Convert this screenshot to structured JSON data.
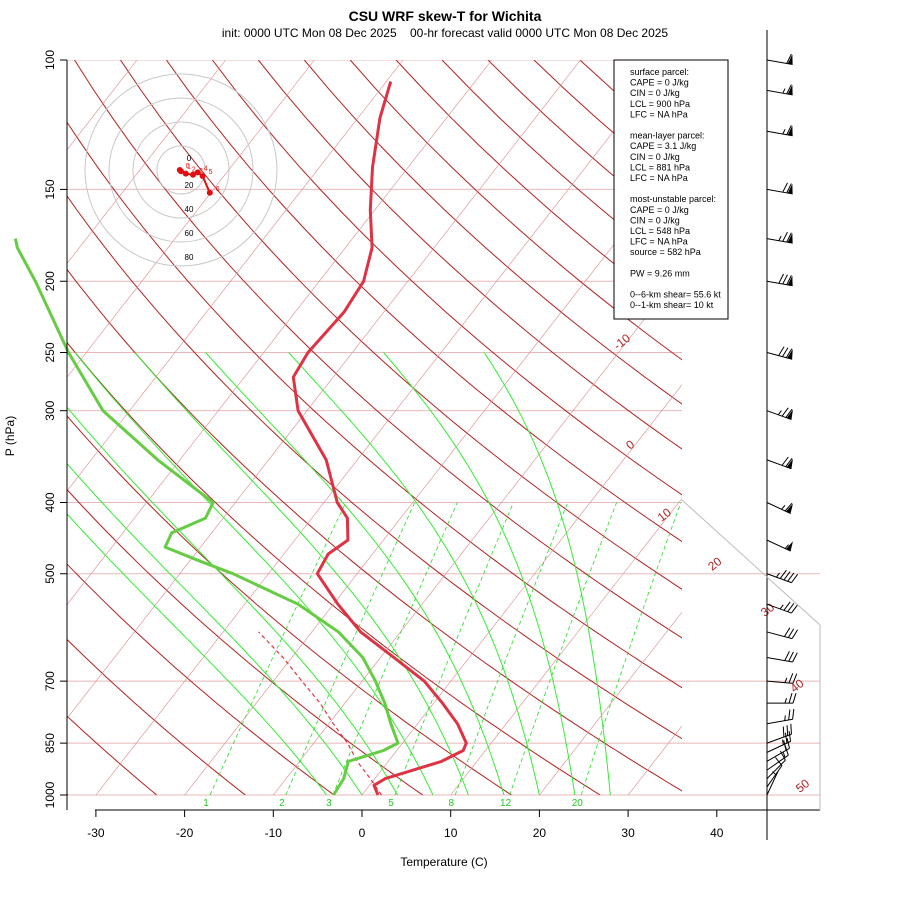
{
  "chart_data": {
    "type": "skew-t",
    "title": "CSU WRF skew-T for Wichita",
    "subtitle": "init: 0000 UTC Mon 08 Dec 2025    00-hr forecast valid 0000 UTC Mon 08 Dec 2025",
    "xlabel": "Temperature (C)",
    "ylabel": "P (hPa)",
    "x_ticks": [
      -30,
      -20,
      -10,
      0,
      10,
      20,
      30,
      40
    ],
    "y_ticks": [
      100,
      150,
      200,
      250,
      300,
      400,
      500,
      700,
      850,
      1000
    ],
    "xlim": [
      -33,
      45
    ],
    "ylim": [
      1000,
      100
    ],
    "y_scale": "log",
    "isotherm_labels": [
      "-10",
      "0",
      "10",
      "20",
      "30",
      "40",
      "50"
    ],
    "mixing_ratio_labels": [
      "1",
      "2",
      "3",
      "5",
      "8",
      "12",
      "20"
    ],
    "temperature_profile": {
      "color": "#dd3344",
      "points": [
        [
          1000,
          1.8
        ],
        [
          970,
          0.5
        ],
        [
          950,
          1.2
        ],
        [
          900,
          6.0
        ],
        [
          870,
          7.5
        ],
        [
          850,
          7.2
        ],
        [
          800,
          4.5
        ],
        [
          750,
          1.0
        ],
        [
          700,
          -3.0
        ],
        [
          650,
          -8.5
        ],
        [
          600,
          -14.5
        ],
        [
          550,
          -19.5
        ],
        [
          500,
          -24.5
        ],
        [
          470,
          -25.0
        ],
        [
          450,
          -24.0
        ],
        [
          420,
          -26.0
        ],
        [
          400,
          -28.5
        ],
        [
          350,
          -33.5
        ],
        [
          300,
          -41.0
        ],
        [
          270,
          -44.5
        ],
        [
          250,
          -45.0
        ],
        [
          220,
          -44.5
        ],
        [
          200,
          -45.0
        ],
        [
          180,
          -47.0
        ],
        [
          160,
          -50.5
        ],
        [
          140,
          -54.0
        ],
        [
          120,
          -57.5
        ],
        [
          107,
          -59.5
        ]
      ]
    },
    "dewpoint_profile": {
      "color": "#66cc44",
      "points": [
        [
          1000,
          -3.2
        ],
        [
          950,
          -3.5
        ],
        [
          900,
          -4.5
        ],
        [
          870,
          -1.5
        ],
        [
          850,
          -0.5
        ],
        [
          800,
          -3.0
        ],
        [
          750,
          -5.5
        ],
        [
          700,
          -8.5
        ],
        [
          650,
          -12.0
        ],
        [
          600,
          -17.0
        ],
        [
          550,
          -24.0
        ],
        [
          500,
          -34.0
        ],
        [
          480,
          -39.0
        ],
        [
          460,
          -44.0
        ],
        [
          440,
          -44.5
        ],
        [
          420,
          -42.0
        ],
        [
          400,
          -42.5
        ],
        [
          350,
          -52.5
        ],
        [
          300,
          -63.0
        ],
        [
          250,
          -72.0
        ],
        [
          200,
          -82.0
        ],
        [
          180,
          -87.0
        ],
        [
          175,
          -88.0
        ]
      ]
    },
    "parcel_profile": {
      "color": "#dd3344",
      "dashed": true,
      "points": [
        [
          1000,
          2.2
        ],
        [
          950,
          -0.5
        ],
        [
          900,
          -3.5
        ],
        [
          850,
          -6.2
        ],
        [
          800,
          -9.5
        ],
        [
          750,
          -12.8
        ],
        [
          700,
          -16.8
        ],
        [
          650,
          -21.0
        ],
        [
          600,
          -26.0
        ]
      ]
    },
    "wind_barbs": [
      {
        "p": 1000,
        "dir": 205,
        "kt": 5
      },
      {
        "p": 975,
        "dir": 215,
        "kt": 10
      },
      {
        "p": 950,
        "dir": 225,
        "kt": 10
      },
      {
        "p": 925,
        "dir": 235,
        "kt": 15
      },
      {
        "p": 900,
        "dir": 240,
        "kt": 20
      },
      {
        "p": 875,
        "dir": 245,
        "kt": 25
      },
      {
        "p": 850,
        "dir": 250,
        "kt": 30
      },
      {
        "p": 800,
        "dir": 260,
        "kt": 25
      },
      {
        "p": 750,
        "dir": 270,
        "kt": 25
      },
      {
        "p": 700,
        "dir": 275,
        "kt": 25
      },
      {
        "p": 650,
        "dir": 280,
        "kt": 30
      },
      {
        "p": 600,
        "dir": 285,
        "kt": 30
      },
      {
        "p": 550,
        "dir": 290,
        "kt": 35
      },
      {
        "p": 500,
        "dir": 290,
        "kt": 45
      },
      {
        "p": 450,
        "dir": 295,
        "kt": 55
      },
      {
        "p": 400,
        "dir": 295,
        "kt": 65
      },
      {
        "p": 350,
        "dir": 290,
        "kt": 70
      },
      {
        "p": 300,
        "dir": 290,
        "kt": 75
      },
      {
        "p": 250,
        "dir": 285,
        "kt": 80
      },
      {
        "p": 200,
        "dir": 280,
        "kt": 80
      },
      {
        "p": 175,
        "dir": 280,
        "kt": 75
      },
      {
        "p": 150,
        "dir": 280,
        "kt": 70
      },
      {
        "p": 125,
        "dir": 280,
        "kt": 65
      },
      {
        "p": 110,
        "dir": 280,
        "kt": 65
      },
      {
        "p": 100,
        "dir": 280,
        "kt": 60
      }
    ],
    "hodograph": {
      "ring_labels": [
        "0",
        "20",
        "40",
        "60",
        "80"
      ],
      "point_labels": [
        "0",
        "1",
        "2",
        "3",
        "4",
        "5",
        "6"
      ],
      "points": [
        [
          -1,
          0
        ],
        [
          0,
          -1
        ],
        [
          4,
          -3
        ],
        [
          10,
          -4
        ],
        [
          14,
          -2
        ],
        [
          18,
          -5
        ],
        [
          24,
          -19
        ]
      ]
    },
    "legend": {
      "lines": [
        "surface parcel:",
        "CAPE = 0 J/kg",
        "CIN = 0 J/kg",
        "LCL = 900 hPa",
        "LFC = NA hPa",
        "",
        "mean-layer parcel:",
        "CAPE = 3.1 J/kg",
        "CIN = 0 J/kg",
        "LCL = 881 hPa",
        "LFC = NA hPa",
        "",
        "most-unstable parcel:",
        "CAPE = 0 J/kg",
        "CIN = 0 J/kg",
        "LCL = 548 hPa",
        "LFC = NA hPa",
        "source = 582 hPa",
        "",
        "PW =  9.26 mm",
        "",
        "0--6-km shear= 55.6 kt",
        "0--1-km shear= 10 kt"
      ]
    },
    "colors": {
      "isotherm": "#b22222",
      "isotherm_light": "#d98a8a",
      "dry_adiabat": "#e8b0b0",
      "mixing_ratio": "#22dd22",
      "moist_adiabat": "#33ee33",
      "isobar": "#e8b8b8"
    }
  }
}
